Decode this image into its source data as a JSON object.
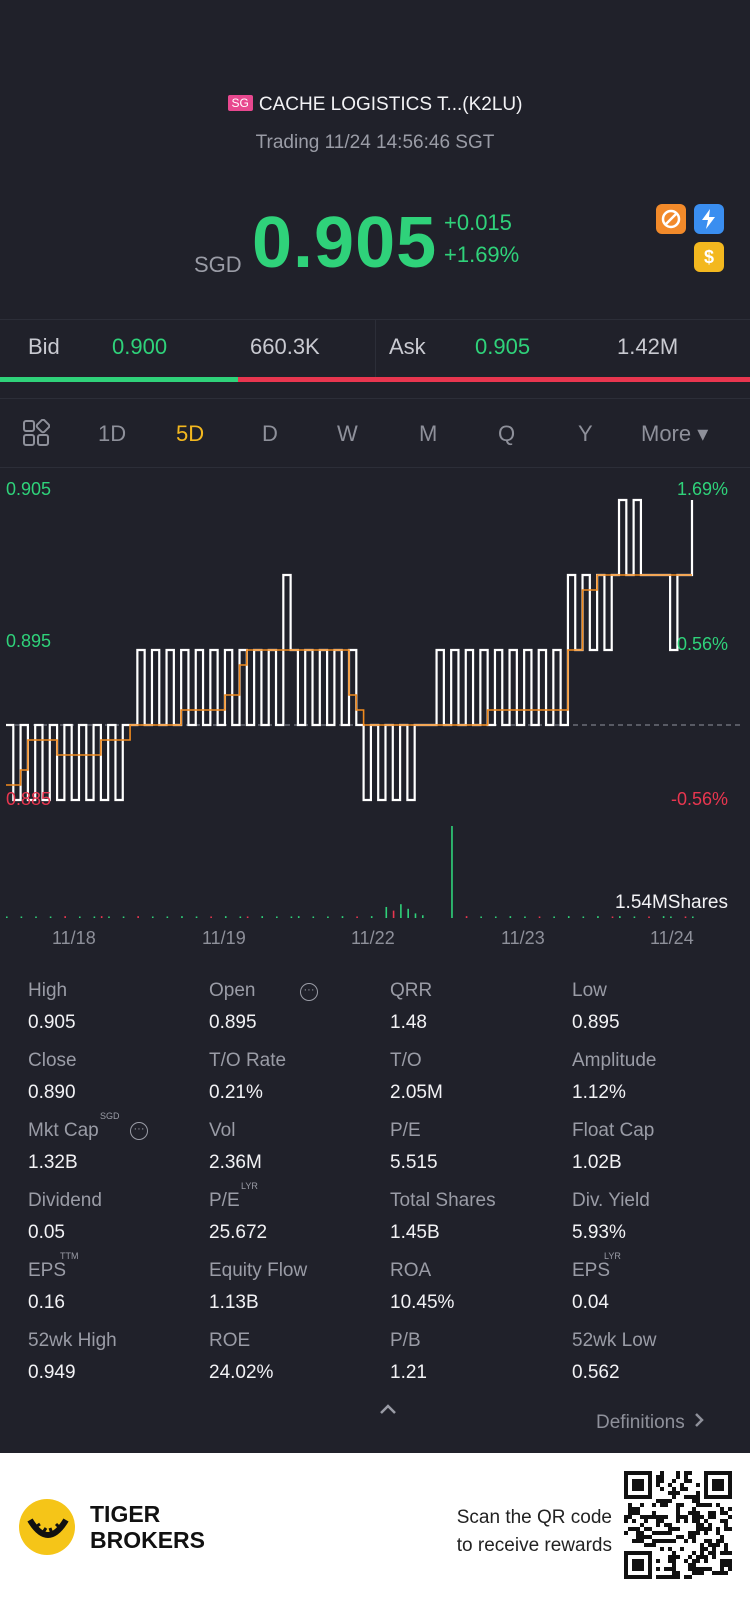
{
  "header": {
    "market_badge": "SG",
    "title": "CACHE LOGISTICS T...(K2LU)",
    "status": "Trading 11/24 14:56:46 SGT"
  },
  "quote": {
    "currency": "SGD",
    "price": "0.905",
    "change": "+0.015",
    "change_pct": "+1.69%",
    "colors": {
      "up": "#2fd27a",
      "down": "#e8364f",
      "accent": "#f3b81f"
    }
  },
  "icons": [
    "no-sign-icon",
    "lightning-icon",
    "dollar-icon"
  ],
  "bid_ask": {
    "bid_label": "Bid",
    "bid_price": "0.900",
    "bid_volume": "660.3K",
    "ask_label": "Ask",
    "ask_price": "0.905",
    "ask_volume": "1.42M",
    "bid_fraction": 0.317
  },
  "tabs": [
    {
      "label": "1D"
    },
    {
      "label": "5D"
    },
    {
      "label": "D"
    },
    {
      "label": "W"
    },
    {
      "label": "M"
    },
    {
      "label": "Q"
    },
    {
      "label": "Y"
    },
    {
      "label": "More ▾"
    }
  ],
  "active_tab": "5D",
  "chart_data": {
    "type": "line",
    "x_labels": [
      "11/18",
      "11/19",
      "11/22",
      "11/23",
      "11/24"
    ],
    "y_labels_left": [
      "0.905",
      "0.895",
      "0.885"
    ],
    "y_labels_right": [
      "1.69%",
      "0.56%",
      "-0.56%"
    ],
    "ylim": [
      0.885,
      0.905
    ],
    "reference_close": 0.89,
    "volume_label": "1.54MShares",
    "series": [
      {
        "kind": "price",
        "values": [
          0.89,
          0.885,
          0.89,
          0.885,
          0.89,
          0.885,
          0.89,
          0.885,
          0.89,
          0.885,
          0.89,
          0.885,
          0.89,
          0.885,
          0.89,
          0.885,
          0.89,
          0.89,
          0.895,
          0.89,
          0.895,
          0.89,
          0.895,
          0.89,
          0.895,
          0.89,
          0.895,
          0.89,
          0.895,
          0.89,
          0.895,
          0.89,
          0.895,
          0.89,
          0.895,
          0.89,
          0.895,
          0.89,
          0.9,
          0.895,
          0.89,
          0.895,
          0.89,
          0.895,
          0.89,
          0.895,
          0.89,
          0.895,
          0.89,
          0.885,
          0.89,
          0.885,
          0.89,
          0.885,
          0.89,
          0.885,
          0.89,
          0.89,
          0.89,
          0.895,
          0.89,
          0.895,
          0.89,
          0.895,
          0.89,
          0.895,
          0.89,
          0.895,
          0.89,
          0.895,
          0.89,
          0.895,
          0.89,
          0.895,
          0.89,
          0.895,
          0.89,
          0.9,
          0.895,
          0.9,
          0.895,
          0.9,
          0.895,
          0.9,
          0.905,
          0.9,
          0.905,
          0.9,
          0.9,
          0.9,
          0.9,
          0.895,
          0.9,
          0.9,
          0.905
        ]
      },
      {
        "kind": "average",
        "values": [
          0.886,
          0.886,
          0.887,
          0.889,
          0.889,
          0.889,
          0.889,
          0.888,
          0.888,
          0.888,
          0.888,
          0.888,
          0.888,
          0.889,
          0.889,
          0.889,
          0.889,
          0.89,
          0.89,
          0.89,
          0.89,
          0.89,
          0.89,
          0.89,
          0.891,
          0.891,
          0.891,
          0.891,
          0.891,
          0.891,
          0.892,
          0.892,
          0.894,
          0.895,
          0.895,
          0.895,
          0.895,
          0.895,
          0.895,
          0.895,
          0.895,
          0.895,
          0.895,
          0.895,
          0.895,
          0.895,
          0.895,
          0.892,
          0.891,
          0.89,
          0.89,
          0.89,
          0.89,
          0.89,
          0.89,
          0.89,
          0.89,
          0.89,
          0.89,
          0.89,
          0.89,
          0.89,
          0.89,
          0.89,
          0.89,
          0.89,
          0.891,
          0.891,
          0.891,
          0.891,
          0.891,
          0.891,
          0.891,
          0.891,
          0.891,
          0.891,
          0.891,
          0.895,
          0.895,
          0.899,
          0.899,
          0.9,
          0.9,
          0.9,
          0.9,
          0.9,
          0.9,
          0.9,
          0.9,
          0.9,
          0.9,
          0.9,
          0.9,
          0.9,
          0.9
        ]
      }
    ],
    "volume": [
      0.01,
      0,
      0.01,
      0,
      0.01,
      0,
      0.01,
      0,
      0.02,
      0,
      0.01,
      0,
      0.01,
      0.02,
      0.01,
      0,
      0.01,
      0,
      0.02,
      0,
      0.01,
      0,
      0.01,
      0,
      0.02,
      0,
      0.01,
      0,
      0.01,
      0,
      0.02,
      0,
      0.01,
      0.01,
      0,
      0.02,
      0,
      0.01,
      0,
      0.01,
      0.02,
      0,
      0.01,
      0,
      0.01,
      0,
      0.02,
      0,
      0.01,
      0,
      0.02,
      0,
      0.12,
      0.08,
      0.15,
      0.1,
      0.05,
      0.03,
      0,
      0,
      0,
      1.0,
      0,
      0.02,
      0,
      0.01,
      0,
      0.01,
      0,
      0.02,
      0,
      0.01,
      0,
      0.01,
      0,
      0.01,
      0,
      0.02,
      0,
      0.01,
      0,
      0.02,
      0,
      0.01,
      0.02,
      0,
      0.01,
      0,
      0.01,
      0,
      0.02,
      0.01,
      0,
      0.01,
      0.01
    ]
  },
  "stats": [
    {
      "label": "High",
      "value": "0.905"
    },
    {
      "label": "Open",
      "value": "0.895"
    },
    {
      "label": "QRR",
      "value": "1.48"
    },
    {
      "label": "Low",
      "value": "0.895"
    },
    {
      "label": "Close",
      "value": "0.890"
    },
    {
      "label": "T/O Rate",
      "value": "0.21%"
    },
    {
      "label": "T/O",
      "value": "2.05M"
    },
    {
      "label": "Amplitude",
      "value": "1.12%"
    },
    {
      "label": "Mkt Cap",
      "value": "1.32B",
      "sup": "SGD"
    },
    {
      "label": "Vol",
      "value": "2.36M"
    },
    {
      "label": "P/E",
      "value": "5.515"
    },
    {
      "label": "Float Cap",
      "value": "1.02B"
    },
    {
      "label": "Dividend",
      "value": "0.05"
    },
    {
      "label": "P/E",
      "value": "25.672",
      "sup": "LYR"
    },
    {
      "label": "Total Shares",
      "value": "1.45B"
    },
    {
      "label": "Div. Yield",
      "value": "5.93%"
    },
    {
      "label": "EPS",
      "value": "0.16",
      "sup": "TTM"
    },
    {
      "label": "Equity Flow",
      "value": "1.13B"
    },
    {
      "label": "ROA",
      "value": "10.45%"
    },
    {
      "label": "EPS",
      "value": "0.04",
      "sup": "LYR"
    },
    {
      "label": "52wk High",
      "value": "0.949"
    },
    {
      "label": "ROE",
      "value": "24.02%"
    },
    {
      "label": "P/B",
      "value": "1.21"
    },
    {
      "label": "52wk Low",
      "value": "0.562"
    }
  ],
  "definitions_link": "Definitions",
  "footer": {
    "brand_line1": "TIGER",
    "brand_line2": "BROKERS",
    "promo_line1": "Scan the QR code",
    "promo_line2": "to receive rewards"
  }
}
